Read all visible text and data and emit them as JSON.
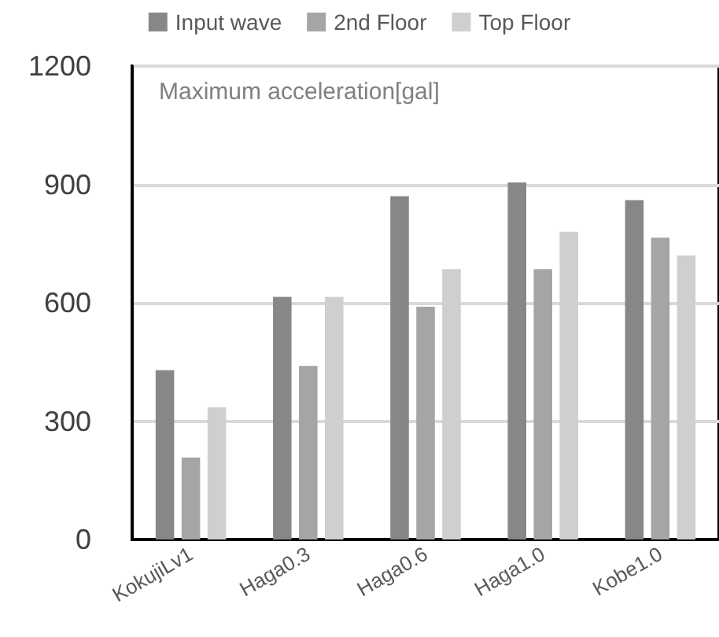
{
  "chart_data": {
    "type": "bar",
    "title": "Maximum acceleration[gal]",
    "categories": [
      "KokujiLv1",
      "Haga0.3",
      "Haga0.6",
      "Haga1.0",
      "Kobe1.0"
    ],
    "series": [
      {
        "name": "Input wave",
        "color": "#878787",
        "values": [
          429,
          615,
          870,
          905,
          860
        ]
      },
      {
        "name": "2nd Floor",
        "color": "#a5a5a5",
        "values": [
          208,
          440,
          590,
          685,
          765
        ]
      },
      {
        "name": "Top Floor",
        "color": "#cfcfcf",
        "values": [
          335,
          615,
          685,
          780,
          720
        ]
      }
    ],
    "ylim": [
      0,
      1200
    ],
    "yticks": [
      0,
      300,
      600,
      900,
      1200
    ],
    "grid": "y",
    "legend": "top"
  }
}
